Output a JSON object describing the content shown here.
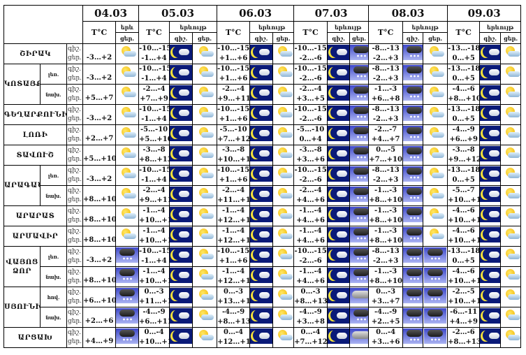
{
  "header": {
    "dates": [
      "04.03",
      "05.03",
      "06.03",
      "07.03",
      "08.03",
      "09.03"
    ],
    "temp_label": "T°C",
    "phenomenon_label": "երևույթ",
    "phenomenon_label_short": "երև",
    "night_label": "գիշ.",
    "day_label": "ցեր."
  },
  "rows": [
    {
      "region": "ՇԻՐԱԿ",
      "span": 1,
      "sub": "",
      "d04": {
        "temp": "-3…+2",
        "icon": "partly"
      },
      "days": [
        [
          "-10…-15",
          "-1…+4",
          "moon",
          "partly"
        ],
        [
          "-10…-15",
          "+1…+6",
          "moon",
          "partly"
        ],
        [
          "-10…-15",
          "-2…-6",
          "moon",
          "snow"
        ],
        [
          "-8…-13",
          "-2…+3",
          "snow",
          "partly"
        ],
        [
          "-13…-18",
          "0…+5",
          "moon",
          "partly"
        ]
      ]
    },
    {
      "region": "ԿՈՏԱՅՔ",
      "span": 2,
      "sub": "լեռ.",
      "d04": {
        "temp": "-3…+2",
        "icon": "partly"
      },
      "days": [
        [
          "-10…-15",
          "-1…+4",
          "moon",
          "partly"
        ],
        [
          "-10…-15",
          "+1…+6",
          "moon",
          "partly"
        ],
        [
          "-10…-15",
          "-2…-6",
          "moon",
          "snow"
        ],
        [
          "-8…-13",
          "-2…+3",
          "snow",
          "partly"
        ],
        [
          "-13…-18",
          "0…+5",
          "moon",
          "partly"
        ]
      ]
    },
    {
      "region": null,
      "sub": "նախ.",
      "d04": {
        "temp": "+5…+7",
        "icon": "partly"
      },
      "days": [
        [
          "-2…-4",
          "+7…+9",
          "moon",
          "partly"
        ],
        [
          "-2…-4",
          "+9…+11",
          "moon",
          "partly"
        ],
        [
          "-2…-4",
          "+3…+5",
          "moon",
          "snow"
        ],
        [
          "-1…-3",
          "+6…+8",
          "snow",
          "partly"
        ],
        [
          "-4…-6",
          "+8…+10",
          "moon",
          "partly"
        ]
      ]
    },
    {
      "region": "ԳԵՂԱՐՔՈՒՆԻՔ",
      "span": 1,
      "sub": "",
      "d04": {
        "temp": "-3…+2",
        "icon": "partly"
      },
      "days": [
        [
          "-10…-15",
          "-1…+4",
          "moon",
          "partly"
        ],
        [
          "-10…-15",
          "+1…+6",
          "moon",
          "partly"
        ],
        [
          "-10…-15",
          "-2…-6",
          "moon",
          "snow"
        ],
        [
          "-8…-13",
          "-2…+3",
          "snow",
          "partly"
        ],
        [
          "-13…-18",
          "0…+5",
          "moon",
          "partly"
        ]
      ]
    },
    {
      "region": "ԼՈՌԻ",
      "span": 1,
      "sub": "",
      "d04": {
        "temp": "+2…+7",
        "icon": "partly"
      },
      "days": [
        [
          "-5…-10",
          "+5…+10",
          "moon",
          "partly"
        ],
        [
          "-5…-10",
          "+7…+12",
          "moon",
          "partly"
        ],
        [
          "-5…-10",
          "0…+4",
          "moon",
          "snow"
        ],
        [
          "-2…-7",
          "+4…+7",
          "snow",
          "partly"
        ],
        [
          "-4…-9",
          "+6…+9",
          "moon",
          "partly"
        ]
      ]
    },
    {
      "region": "ՏԱՎՈՒՇ",
      "span": 1,
      "sub": "",
      "d04": {
        "temp": "+5…+10",
        "icon": "partly"
      },
      "days": [
        [
          "-3…-8",
          "+8…+13",
          "moon",
          "partly"
        ],
        [
          "-3…-8",
          "+10…+15",
          "moon",
          "partly"
        ],
        [
          "-3…-8",
          "+3…+6",
          "moon",
          "snow"
        ],
        [
          "0…-5",
          "+7…+10",
          "snow",
          "partly"
        ],
        [
          "-3…-8",
          "+9…+12",
          "moon",
          "partly"
        ]
      ]
    },
    {
      "region": "ԱՐԱԳԱԾՈՏՆ",
      "span": 2,
      "sub": "լեռ.",
      "d04": {
        "temp": "-3…+2",
        "icon": "partly"
      },
      "days": [
        [
          "-10…-15",
          "-1…+4",
          "moon",
          "partly"
        ],
        [
          "-10…-15",
          "+1…+6",
          "moon",
          "partly"
        ],
        [
          "-10…-15",
          "-2…-6",
          "moon",
          "snow"
        ],
        [
          "-8…-13",
          "-2…+3",
          "snow",
          "partly"
        ],
        [
          "-13…-18",
          "0…+5",
          "moon",
          "partly"
        ]
      ]
    },
    {
      "region": null,
      "sub": "նախ.",
      "d04": {
        "temp": "+8…+10",
        "icon": "partly"
      },
      "days": [
        [
          "-2…-4",
          "+9…+11",
          "moon",
          "partly"
        ],
        [
          "-2…-4",
          "+11…+13",
          "moon",
          "partly"
        ],
        [
          "-2…-4",
          "+4…+6",
          "moon",
          "snow"
        ],
        [
          "-1…-3",
          "+8…+10",
          "snow",
          "partly"
        ],
        [
          "-5…-7",
          "+10…+12",
          "moon",
          "partly"
        ]
      ]
    },
    {
      "region": "ԱՐԱՐԱՏ",
      "span": 1,
      "sub": "",
      "d04": {
        "temp": "+8…+10",
        "icon": "partly"
      },
      "days": [
        [
          "-1…-4",
          "+10…+12",
          "moon",
          "partly"
        ],
        [
          "-1…-4",
          "+12…+14",
          "moon",
          "partly"
        ],
        [
          "-1…-4",
          "+4…+6",
          "moon",
          "snow"
        ],
        [
          "-1…-3",
          "+8…+10",
          "snow",
          "partly"
        ],
        [
          "-4…-6",
          "+10…+12",
          "moon",
          "partly"
        ]
      ]
    },
    {
      "region": "ԱՐՄԱՎԻՐ",
      "span": 1,
      "sub": "",
      "d04": {
        "temp": "+8…+10",
        "icon": "partly"
      },
      "days": [
        [
          "-1…-4",
          "+10…+12",
          "moon",
          "partly"
        ],
        [
          "-1…-4",
          "+12…+14",
          "moon",
          "partly"
        ],
        [
          "-1…-4",
          "+4…+6",
          "moon",
          "snow"
        ],
        [
          "-1…-3",
          "+8…+10",
          "snow",
          "partly"
        ],
        [
          "-4…-6",
          "+10…+12",
          "moon",
          "partly"
        ]
      ]
    },
    {
      "region": "ՎԱՅՈՑ ՁՈՐ",
      "span": 2,
      "sub": "լեռ.",
      "d04": {
        "temp": "-3…+2",
        "icon": "snow"
      },
      "days": [
        [
          "-10…-15",
          "-1…+4",
          "moon",
          "partly"
        ],
        [
          "-10…-15",
          "+1…+6",
          "moon",
          "partly"
        ],
        [
          "-10…-15",
          "-2…-6",
          "moon",
          "snow"
        ],
        [
          "-8…-13",
          "-2…+3",
          "snow",
          "snow"
        ],
        [
          "-13…-18",
          "0…+5",
          "moon",
          "partly"
        ]
      ]
    },
    {
      "region": null,
      "sub": "նախ.",
      "d04": {
        "temp": "+8…+10",
        "icon": "snow"
      },
      "days": [
        [
          "-1…-4",
          "+10…+12",
          "moon",
          "partly"
        ],
        [
          "-1…-4",
          "+12…+14",
          "moon",
          "partly"
        ],
        [
          "-1…-4",
          "+4…+6",
          "moon",
          "snow"
        ],
        [
          "-1…-3",
          "+8…+10",
          "snow",
          "snow"
        ],
        [
          "-4…-6",
          "+10…+12",
          "moon",
          "partly"
        ]
      ]
    },
    {
      "region": "ՍՅՈՒՆԻՔ",
      "span": 2,
      "sub": "հով.",
      "d04": {
        "temp": "+6…+10",
        "icon": "snow"
      },
      "days": [
        [
          "0…-3",
          "+11…+16",
          "moon",
          "partly"
        ],
        [
          "0…-3",
          "+13…+17",
          "moon",
          "partly"
        ],
        [
          "0…-3",
          "+8…+13",
          "moon",
          "cloudy"
        ],
        [
          "0…-3",
          "+3…+7",
          "snow",
          "snow"
        ],
        [
          "-2…-5",
          "+10…+15",
          "moon",
          "partly"
        ]
      ]
    },
    {
      "region": null,
      "sub": "նախ.",
      "d04": {
        "temp": "+2…+6",
        "icon": "snow"
      },
      "days": [
        [
          "-4…-9",
          "+6…+11",
          "moon",
          "partly"
        ],
        [
          "-4…-9",
          "+8…+13",
          "moon",
          "partly"
        ],
        [
          "-4…-9",
          "+3…+8",
          "moon",
          "snow"
        ],
        [
          "-4…-9",
          "+2…+5",
          "snow",
          "snow"
        ],
        [
          "-6…-11",
          "+4…+9",
          "moon",
          "partly"
        ]
      ]
    },
    {
      "region": "ԱՐՑԱԽ",
      "span": 1,
      "sub": "",
      "d04": {
        "temp": "+4…+9",
        "icon": "snow"
      },
      "days": [
        [
          "0…-4",
          "+10…+15",
          "moon",
          "partly"
        ],
        [
          "0…-4",
          "+12…+17",
          "moon",
          "partly"
        ],
        [
          "0…-4",
          "+7…+12",
          "moon",
          "cloudy"
        ],
        [
          "0…-4",
          "+3…+6",
          "snow",
          "snow"
        ],
        [
          "-2…-6",
          "+8…+13",
          "moon",
          "partly"
        ]
      ]
    }
  ]
}
